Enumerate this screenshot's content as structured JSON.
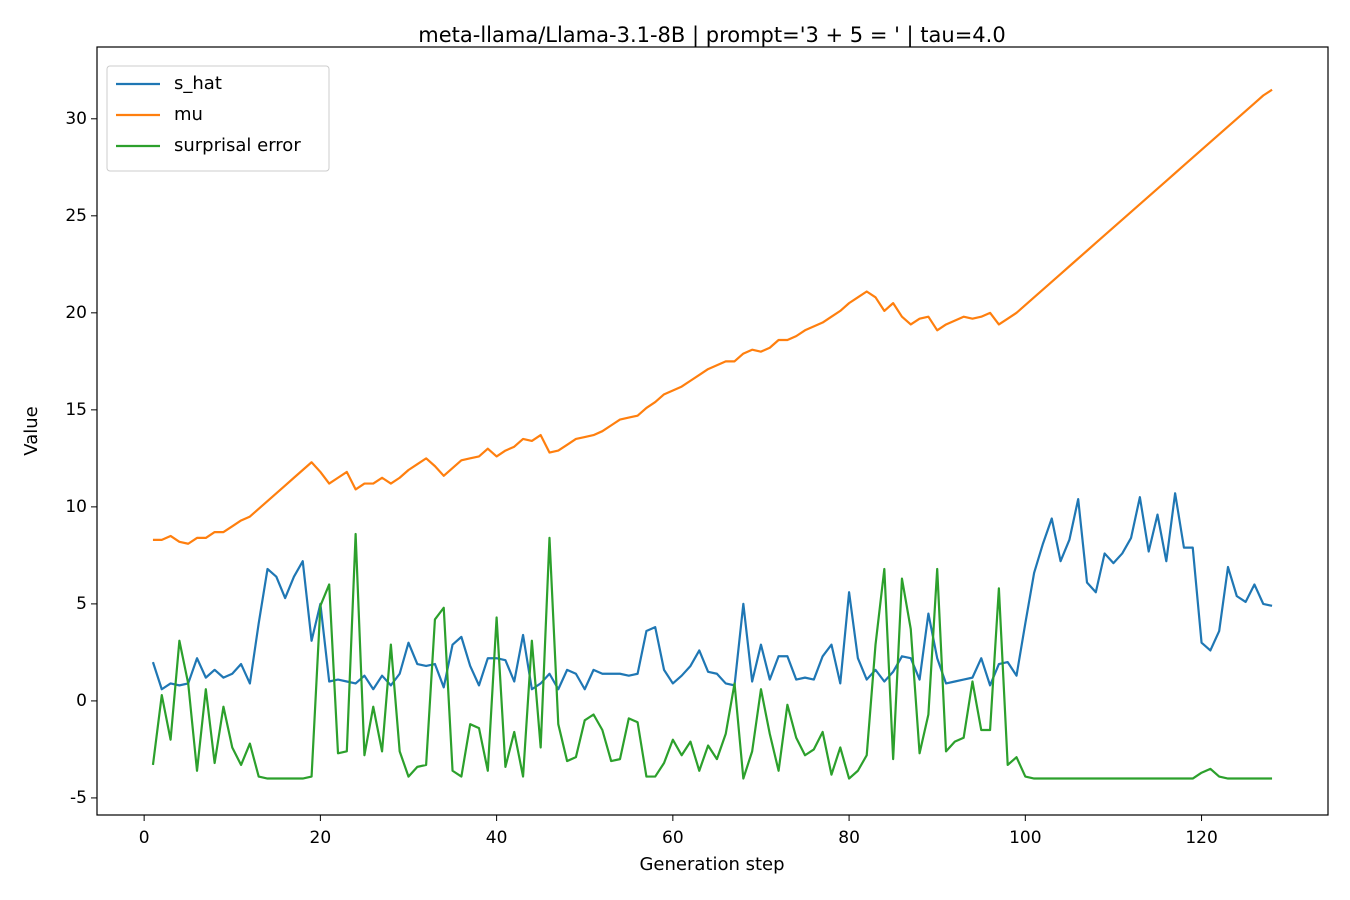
{
  "chart_data": {
    "type": "line",
    "title": "meta-llama/Llama-3.1-8B | prompt='3 + 5 = ' | tau=4.0",
    "xlabel": "Generation step",
    "ylabel": "Value",
    "x": [
      1,
      2,
      3,
      4,
      5,
      6,
      7,
      8,
      9,
      10,
      11,
      12,
      13,
      14,
      15,
      16,
      17,
      18,
      19,
      20,
      21,
      22,
      23,
      24,
      25,
      26,
      27,
      28,
      29,
      30,
      31,
      32,
      33,
      34,
      35,
      36,
      37,
      38,
      39,
      40,
      41,
      42,
      43,
      44,
      45,
      46,
      47,
      48,
      49,
      50,
      51,
      52,
      53,
      54,
      55,
      56,
      57,
      58,
      59,
      60,
      61,
      62,
      63,
      64,
      65,
      66,
      67,
      68,
      69,
      70,
      71,
      72,
      73,
      74,
      75,
      76,
      77,
      78,
      79,
      80,
      81,
      82,
      83,
      84,
      85,
      86,
      87,
      88,
      89,
      90,
      91,
      92,
      93,
      94,
      95,
      96,
      97,
      98,
      99,
      100,
      101,
      102,
      103,
      104,
      105,
      106,
      107,
      108,
      109,
      110,
      111,
      112,
      113,
      114,
      115,
      116,
      117,
      118,
      119,
      120,
      121,
      122,
      123,
      124,
      125,
      126,
      127,
      128
    ],
    "series": [
      {
        "name": "s_hat",
        "color": "#1f77b4",
        "values": [
          2.0,
          0.6,
          0.9,
          0.8,
          0.9,
          2.2,
          1.2,
          1.6,
          1.2,
          1.4,
          1.9,
          0.9,
          4.0,
          6.8,
          6.4,
          5.3,
          6.4,
          7.2,
          3.1,
          5.0,
          1.0,
          1.1,
          1.0,
          0.9,
          1.3,
          0.6,
          1.3,
          0.8,
          1.4,
          3.0,
          1.9,
          1.8,
          1.9,
          0.7,
          2.9,
          3.3,
          1.8,
          0.8,
          2.2,
          2.2,
          2.1,
          1.0,
          3.4,
          0.6,
          0.9,
          1.4,
          0.6,
          1.6,
          1.4,
          0.6,
          1.6,
          1.4,
          1.4,
          1.4,
          1.3,
          1.4,
          3.6,
          3.8,
          1.6,
          0.9,
          1.3,
          1.8,
          2.6,
          1.5,
          1.4,
          0.9,
          0.8,
          5.0,
          1.0,
          2.9,
          1.1,
          2.3,
          2.3,
          1.1,
          1.2,
          1.1,
          2.3,
          2.9,
          0.9,
          5.6,
          2.2,
          1.1,
          1.6,
          1.0,
          1.5,
          2.3,
          2.2,
          1.1,
          4.5,
          2.2,
          0.9,
          1.0,
          1.1,
          1.2,
          2.2,
          0.8,
          1.9,
          2.0,
          1.3,
          4.0,
          6.6,
          8.1,
          9.4,
          7.2,
          8.3,
          10.4,
          6.1,
          5.6,
          7.6,
          7.1,
          7.6,
          8.4,
          10.5,
          7.7,
          9.6,
          7.2,
          10.7,
          7.9,
          7.9,
          3.0,
          2.6,
          3.6,
          6.9,
          5.4,
          5.1,
          6.0,
          5.0,
          4.9
        ]
      },
      {
        "name": "mu",
        "color": "#ff7f0e",
        "values": [
          8.3,
          8.3,
          8.5,
          8.2,
          8.1,
          8.4,
          8.4,
          8.7,
          8.7,
          9.0,
          9.3,
          9.5,
          9.9,
          10.3,
          10.7,
          11.1,
          11.5,
          11.9,
          12.3,
          11.8,
          11.2,
          11.5,
          11.8,
          10.9,
          11.2,
          11.2,
          11.5,
          11.2,
          11.5,
          11.9,
          12.2,
          12.5,
          12.1,
          11.6,
          12.0,
          12.4,
          12.5,
          12.6,
          13.0,
          12.6,
          12.9,
          13.1,
          13.5,
          13.4,
          13.7,
          12.8,
          12.9,
          13.2,
          13.5,
          13.6,
          13.7,
          13.9,
          14.2,
          14.5,
          14.6,
          14.7,
          15.1,
          15.4,
          15.8,
          16.0,
          16.2,
          16.5,
          16.8,
          17.1,
          17.3,
          17.5,
          17.5,
          17.9,
          18.1,
          18.0,
          18.2,
          18.6,
          18.6,
          18.8,
          19.1,
          19.3,
          19.5,
          19.8,
          20.1,
          20.5,
          20.8,
          21.1,
          20.8,
          20.1,
          20.5,
          19.8,
          19.4,
          19.7,
          19.8,
          19.1,
          19.4,
          19.6,
          19.8,
          19.7,
          19.8,
          20.0,
          19.4,
          19.7,
          20.0,
          20.4,
          20.8,
          21.2,
          21.6,
          22.0,
          22.4,
          22.8,
          23.2,
          23.6,
          24.0,
          24.4,
          24.8,
          25.2,
          25.6,
          26.0,
          26.4,
          26.8,
          27.2,
          27.6,
          28.0,
          28.4,
          28.8,
          29.2,
          29.6,
          30.0,
          30.4,
          30.8,
          31.2,
          31.5
        ]
      },
      {
        "name": "surprisal error",
        "color": "#2ca02c",
        "values": [
          -3.3,
          0.3,
          -2.0,
          3.1,
          0.9,
          -3.6,
          0.6,
          -3.2,
          -0.3,
          -2.4,
          -3.3,
          -2.2,
          -3.9,
          -4.0,
          -4.0,
          -4.0,
          -4.0,
          -4.0,
          -3.9,
          4.9,
          6.0,
          -2.7,
          -2.6,
          8.6,
          -2.8,
          -0.3,
          -2.6,
          2.9,
          -2.6,
          -3.9,
          -3.4,
          -3.3,
          4.2,
          4.8,
          -3.6,
          -3.9,
          -1.2,
          -1.4,
          -3.6,
          4.3,
          -3.4,
          -1.6,
          -3.9,
          3.1,
          -2.4,
          8.4,
          -1.2,
          -3.1,
          -2.9,
          -1.0,
          -0.7,
          -1.5,
          -3.1,
          -3.0,
          -0.9,
          -1.1,
          -3.9,
          -3.9,
          -3.2,
          -2.0,
          -2.8,
          -2.1,
          -3.6,
          -2.3,
          -3.0,
          -1.7,
          0.9,
          -4.0,
          -2.6,
          0.6,
          -1.7,
          -3.6,
          -0.2,
          -1.9,
          -2.8,
          -2.5,
          -1.6,
          -3.8,
          -2.4,
          -4.0,
          -3.6,
          -2.8,
          2.9,
          6.8,
          -3.0,
          6.3,
          3.7,
          -2.7,
          -0.7,
          6.8,
          -2.6,
          -2.1,
          -1.9,
          1.0,
          -1.5,
          -1.5,
          5.8,
          -3.3,
          -2.9,
          -3.9,
          -4.0,
          -4.0,
          -4.0,
          -4.0,
          -4.0,
          -4.0,
          -4.0,
          -4.0,
          -4.0,
          -4.0,
          -4.0,
          -4.0,
          -4.0,
          -4.0,
          -4.0,
          -4.0,
          -4.0,
          -4.0,
          -4.0,
          -3.7,
          -3.5,
          -3.9,
          -4.0,
          -4.0,
          -4.0,
          -4.0,
          -4.0,
          -4.0
        ]
      }
    ],
    "xlim": [
      -5.35,
      134.35
    ],
    "ylim": [
      -5.88,
      33.7
    ],
    "xticks": [
      0,
      20,
      40,
      60,
      80,
      100,
      120
    ],
    "yticks": [
      -5,
      0,
      5,
      10,
      15,
      20,
      25,
      30
    ],
    "legend": "upper left"
  }
}
